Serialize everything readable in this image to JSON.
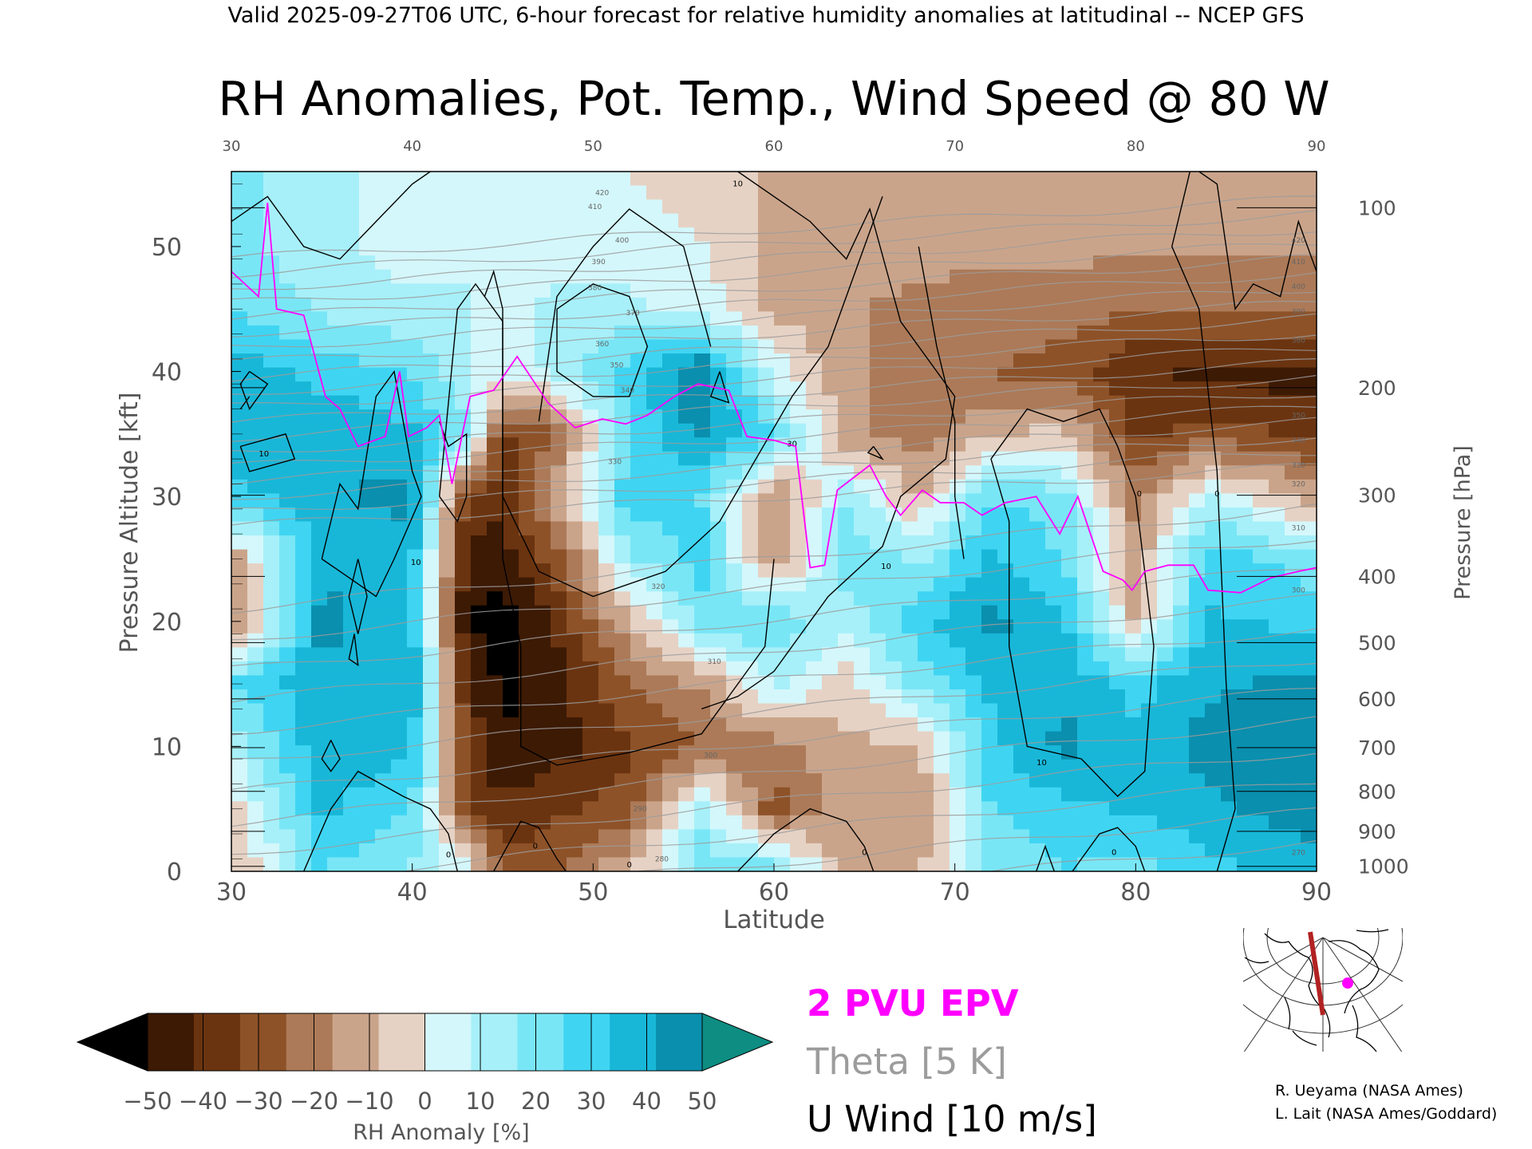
{
  "header": {
    "valid_line": "Valid 2025-09-27T06 UTC, 6-hour forecast for relative humidity anomalies at latitudinal -- NCEP GFS"
  },
  "chart_data": {
    "type": "heatmap",
    "title": "RH Anomalies, Pot. Temp., Wind Speed @ 80 W",
    "xlabel": "Latitude",
    "ylabel": "Pressure Altitude [kft]",
    "ylabel_right": "Pressure [hPa]",
    "xlim": [
      30,
      90
    ],
    "ylim": [
      0,
      56
    ],
    "x_ticks": [
      "30",
      "40",
      "50",
      "60",
      "70",
      "80",
      "90"
    ],
    "x_ticks_top": [
      "30",
      "40",
      "50",
      "60",
      "70",
      "80",
      "90"
    ],
    "y_ticks": [
      "0",
      "10",
      "20",
      "30",
      "40",
      "50"
    ],
    "pressure_ticks": [
      {
        "label": "100",
        "kft": 53.1
      },
      {
        "label": "200",
        "kft": 38.7
      },
      {
        "label": "300",
        "kft": 30.1
      },
      {
        "label": "400",
        "kft": 23.6
      },
      {
        "label": "500",
        "kft": 18.3
      },
      {
        "label": "600",
        "kft": 13.8
      },
      {
        "label": "700",
        "kft": 9.9
      },
      {
        "label": "800",
        "kft": 6.4
      },
      {
        "label": "900",
        "kft": 3.2
      },
      {
        "label": "1000",
        "kft": 0.4
      }
    ],
    "rh_anomaly_percent": {
      "lat": [
        30,
        35,
        40,
        43,
        45,
        48,
        52,
        56,
        60,
        64,
        68,
        72,
        76,
        80,
        84,
        90
      ],
      "kft": [
        0,
        5,
        10,
        15,
        20,
        25,
        30,
        35,
        40,
        45,
        50,
        56
      ],
      "values": [
        [
          -12,
          25,
          15,
          5,
          -30,
          -25,
          -10,
          20,
          25,
          -15,
          -10,
          20,
          25,
          20,
          30,
          40
        ],
        [
          -5,
          35,
          25,
          -30,
          -40,
          -35,
          -30,
          15,
          -30,
          -10,
          -15,
          25,
          30,
          35,
          40,
          45
        ],
        [
          10,
          40,
          35,
          -35,
          -50,
          -45,
          -35,
          -25,
          -20,
          -10,
          -10,
          30,
          45,
          35,
          45,
          50
        ],
        [
          25,
          40,
          40,
          -40,
          -52,
          -45,
          -25,
          -15,
          10,
          -5,
          20,
          35,
          40,
          30,
          40,
          45
        ],
        [
          -20,
          45,
          35,
          -50,
          -55,
          -40,
          -10,
          20,
          25,
          10,
          30,
          45,
          35,
          -10,
          35,
          30
        ],
        [
          -15,
          40,
          35,
          -45,
          -45,
          -30,
          15,
          30,
          -20,
          25,
          15,
          35,
          25,
          -15,
          30,
          20
        ],
        [
          30,
          40,
          45,
          -35,
          -40,
          -10,
          30,
          25,
          -20,
          15,
          -10,
          25,
          20,
          -20,
          10,
          -15
        ],
        [
          40,
          40,
          35,
          20,
          -35,
          -25,
          25,
          45,
          25,
          -15,
          -20,
          -10,
          -5,
          -35,
          -30,
          -35
        ],
        [
          40,
          30,
          25,
          10,
          5,
          10,
          30,
          50,
          5,
          -15,
          -20,
          -25,
          -30,
          -40,
          -45,
          -45
        ],
        [
          25,
          15,
          10,
          10,
          5,
          10,
          10,
          5,
          -10,
          -15,
          -20,
          -20,
          -20,
          -25,
          -25,
          -25
        ],
        [
          20,
          10,
          5,
          5,
          5,
          5,
          5,
          0,
          -10,
          -12,
          -12,
          -15,
          -15,
          -15,
          -15,
          -15
        ],
        [
          20,
          10,
          5,
          0,
          0,
          0,
          0,
          -5,
          -10,
          -10,
          -10,
          -12,
          -12,
          -12,
          -12,
          -12
        ]
      ]
    },
    "theta_K": {
      "levels": [
        270,
        275,
        280,
        285,
        290,
        295,
        300,
        305,
        310,
        315,
        320,
        325,
        330,
        335,
        340,
        345,
        350,
        355,
        360,
        365,
        370,
        375,
        380,
        385,
        390,
        395,
        400,
        405,
        410,
        415,
        420
      ],
      "labels": [
        {
          "text": "280",
          "lat": 53.8,
          "kft": 1.0
        },
        {
          "text": "290",
          "lat": 52.6,
          "kft": 5.0
        },
        {
          "text": "300",
          "lat": 56.5,
          "kft": 9.3
        },
        {
          "text": "310",
          "lat": 56.7,
          "kft": 16.8
        },
        {
          "text": "320",
          "lat": 53.6,
          "kft": 22.8
        },
        {
          "text": "330",
          "lat": 51.2,
          "kft": 32.8
        },
        {
          "text": "340",
          "lat": 51.9,
          "kft": 38.5
        },
        {
          "text": "350",
          "lat": 51.3,
          "kft": 40.5
        },
        {
          "text": "360",
          "lat": 50.5,
          "kft": 42.2
        },
        {
          "text": "370",
          "lat": 52.2,
          "kft": 44.7
        },
        {
          "text": "380",
          "lat": 50.1,
          "kft": 46.7
        },
        {
          "text": "390",
          "lat": 50.3,
          "kft": 48.8
        },
        {
          "text": "400",
          "lat": 51.6,
          "kft": 50.5
        },
        {
          "text": "410",
          "lat": 50.1,
          "kft": 53.2
        },
        {
          "text": "420",
          "lat": 50.5,
          "kft": 54.3
        },
        {
          "text": "270",
          "lat": 89.0,
          "kft": 1.5
        },
        {
          "text": "300",
          "lat": 89.0,
          "kft": 22.5
        },
        {
          "text": "310",
          "lat": 89.0,
          "kft": 27.5
        },
        {
          "text": "320",
          "lat": 89.0,
          "kft": 31.0
        },
        {
          "text": "330",
          "lat": 89.0,
          "kft": 32.5
        },
        {
          "text": "340",
          "lat": 89.0,
          "kft": 34.5
        },
        {
          "text": "350",
          "lat": 89.0,
          "kft": 36.5
        },
        {
          "text": "380",
          "lat": 89.0,
          "kft": 42.5
        },
        {
          "text": "390",
          "lat": 89.0,
          "kft": 44.8
        },
        {
          "text": "400",
          "lat": 89.0,
          "kft": 46.8
        },
        {
          "text": "410",
          "lat": 89.0,
          "kft": 48.8
        },
        {
          "text": "420",
          "lat": 89.0,
          "kft": 50.5
        }
      ]
    },
    "u_wind_labels": [
      {
        "text": "10",
        "lat": 31.8,
        "kft": 33.4
      },
      {
        "text": "10",
        "lat": 40.2,
        "kft": 24.7
      },
      {
        "text": "30",
        "lat": 61.0,
        "kft": 34.2
      },
      {
        "text": "10",
        "lat": 66.2,
        "kft": 24.4
      },
      {
        "text": "10",
        "lat": 74.8,
        "kft": 8.7
      },
      {
        "text": "0",
        "lat": 42.0,
        "kft": 1.3
      },
      {
        "text": "0",
        "lat": 46.8,
        "kft": 2.0
      },
      {
        "text": "0",
        "lat": 65.0,
        "kft": 1.5
      },
      {
        "text": "0",
        "lat": 52.0,
        "kft": 0.5
      },
      {
        "text": "0",
        "lat": 78.8,
        "kft": 1.5
      },
      {
        "text": "0",
        "lat": 80.2,
        "kft": 30.2
      },
      {
        "text": "0",
        "lat": 84.5,
        "kft": 30.2
      },
      {
        "text": "10",
        "lat": 58.0,
        "kft": 55.0
      }
    ],
    "epv_2pvu_kft": [
      [
        30,
        48
      ],
      [
        31.5,
        46
      ],
      [
        32,
        53.5
      ],
      [
        32.5,
        45
      ],
      [
        34,
        44.5
      ],
      [
        35.2,
        38
      ],
      [
        36,
        37
      ],
      [
        37,
        34
      ],
      [
        38.5,
        34.8
      ],
      [
        39.3,
        40
      ],
      [
        39.8,
        34.8
      ],
      [
        40.8,
        35.5
      ],
      [
        41.5,
        36.5
      ],
      [
        42.2,
        31
      ],
      [
        43.2,
        38
      ],
      [
        44.5,
        38.5
      ],
      [
        45.8,
        41.2
      ],
      [
        47.5,
        37.5
      ],
      [
        49,
        35.5
      ],
      [
        50.5,
        36.2
      ],
      [
        51.8,
        35.8
      ],
      [
        53,
        36.5
      ],
      [
        54.5,
        38
      ],
      [
        55.8,
        39
      ],
      [
        57.5,
        38.5
      ],
      [
        58.5,
        34.8
      ],
      [
        60,
        34.5
      ],
      [
        61.2,
        34
      ],
      [
        62,
        24.3
      ],
      [
        62.8,
        24.5
      ],
      [
        63.5,
        30.5
      ],
      [
        65.3,
        32.5
      ],
      [
        66.2,
        30
      ],
      [
        67,
        28.5
      ],
      [
        68.2,
        30.5
      ],
      [
        69.2,
        29.5
      ],
      [
        70.5,
        29.5
      ],
      [
        71.5,
        28.5
      ],
      [
        72.8,
        29.5
      ],
      [
        74.5,
        30
      ],
      [
        75.8,
        27
      ],
      [
        76.8,
        30
      ],
      [
        78.2,
        24
      ],
      [
        79.3,
        23.3
      ],
      [
        79.8,
        22.5
      ],
      [
        80.5,
        24
      ],
      [
        81.8,
        24.5
      ],
      [
        83.2,
        24.5
      ],
      [
        84,
        22.5
      ],
      [
        85.8,
        22.3
      ],
      [
        87.5,
        23.5
      ],
      [
        89,
        24
      ],
      [
        90,
        24.3
      ]
    ]
  },
  "colorbar": {
    "label": "RH Anomaly [%]",
    "tick_labels": [
      "−50",
      "−40",
      "−30",
      "−20",
      "−10",
      "0",
      "10",
      "20",
      "30",
      "40",
      "50"
    ],
    "colors": [
      "#000000",
      "#3d1a04",
      "#6b3410",
      "#8e5228",
      "#ac7a58",
      "#caa48a",
      "#e6d2c4",
      "#d4f7fb",
      "#a7f0f9",
      "#79e6f6",
      "#3fd5f2",
      "#18b7d8",
      "#0a8fae",
      "#0e8d82"
    ]
  },
  "legend": {
    "epv": "2 PVU EPV",
    "theta": "Theta [5 K]",
    "u_wind": "U Wind [10 m/s]",
    "epv_color": "#ff00ff",
    "theta_color": "#9c9c9c",
    "u_wind_color": "#000000"
  },
  "credits": {
    "line1": "R. Ueyama (NASA Ames)",
    "line2": "L. Lait (NASA Ames/Goddard)"
  },
  "inset_map": {
    "section_line_color": "#b22222",
    "marker_color": "#ff00ff"
  }
}
